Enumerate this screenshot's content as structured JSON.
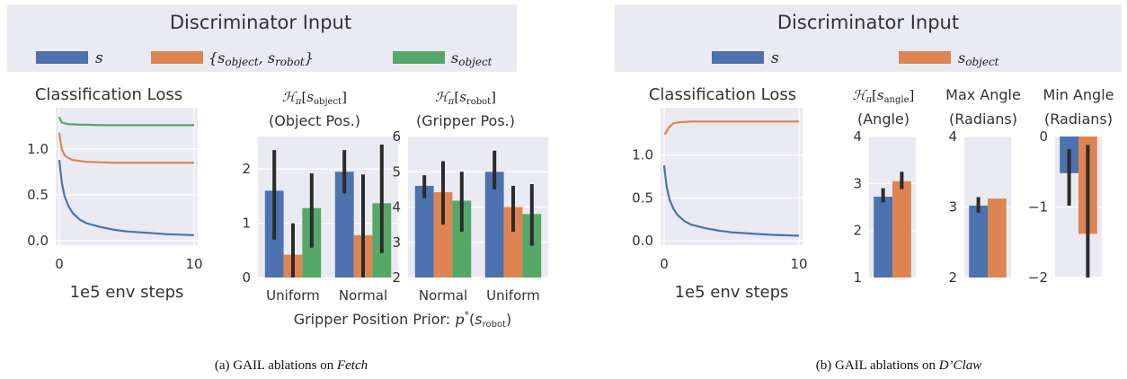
{
  "colors": {
    "panel_bg": "#eaeaf2",
    "s": "#4c72b0",
    "pair": "#dd8452",
    "object": "#55a868",
    "errbar": "#2b2b2b"
  },
  "panel_a": {
    "legend_title": "Discriminator Input",
    "legend": [
      {
        "key": "s",
        "label": "s",
        "color": "#4c72b0"
      },
      {
        "key": "pair",
        "label": "{s_object, s_robot}",
        "color": "#dd8452"
      },
      {
        "key": "object",
        "label": "s_object",
        "color": "#55a868"
      }
    ],
    "caption": "(a) GAIL ablations on Fetch",
    "xlabel_shared": "Gripper Position Prior: p*(s_robot)"
  },
  "panel_b": {
    "legend_title": "Discriminator Input",
    "legend": [
      {
        "key": "s",
        "label": "s",
        "color": "#4c72b0"
      },
      {
        "key": "object",
        "label": "s_object",
        "color": "#dd8452"
      }
    ],
    "caption": "(b) GAIL ablations on D’Claw"
  },
  "chart_data": [
    {
      "id": "a_loss",
      "type": "line",
      "title": "Classification Loss",
      "xlabel": "1e5 env steps",
      "xlim": [
        0,
        10
      ],
      "ylim": [
        -0.05,
        1.45
      ],
      "xticks": [
        0,
        10
      ],
      "yticks": [
        0.0,
        0.5,
        1.0
      ],
      "series": [
        {
          "name": "s",
          "x": [
            0,
            0.1,
            0.2,
            0.4,
            0.7,
            1,
            1.5,
            2,
            3,
            4,
            5,
            6,
            7,
            8,
            9,
            10
          ],
          "y": [
            0.88,
            0.74,
            0.62,
            0.48,
            0.37,
            0.3,
            0.23,
            0.19,
            0.15,
            0.12,
            0.1,
            0.09,
            0.08,
            0.07,
            0.065,
            0.06
          ]
        },
        {
          "name": "{s_object, s_robot}",
          "x": [
            0,
            0.1,
            0.2,
            0.4,
            0.7,
            1,
            1.5,
            2,
            3,
            4,
            5,
            6,
            7,
            8,
            9,
            10
          ],
          "y": [
            1.18,
            1.06,
            0.99,
            0.93,
            0.9,
            0.88,
            0.87,
            0.86,
            0.855,
            0.85,
            0.85,
            0.85,
            0.85,
            0.85,
            0.85,
            0.85
          ]
        },
        {
          "name": "s_object",
          "x": [
            0,
            0.1,
            0.2,
            0.4,
            0.7,
            1,
            1.5,
            2,
            3,
            4,
            5,
            6,
            7,
            8,
            9,
            10
          ],
          "y": [
            1.35,
            1.31,
            1.29,
            1.28,
            1.27,
            1.27,
            1.265,
            1.265,
            1.26,
            1.26,
            1.26,
            1.26,
            1.26,
            1.26,
            1.26,
            1.26
          ]
        }
      ]
    },
    {
      "id": "a_obj",
      "type": "bar",
      "title": [
        "H_π[s_object]",
        "(Object Pos.)"
      ],
      "categories": [
        "Uniform",
        "Normal"
      ],
      "ylim": [
        0,
        2.6
      ],
      "yticks": [
        0,
        1,
        2
      ],
      "series": [
        {
          "name": "s",
          "values": [
            1.6,
            1.95
          ],
          "err_low": [
            0.7,
            1.55
          ],
          "err_high": [
            2.35,
            2.35
          ]
        },
        {
          "name": "{s_object, s_robot}",
          "values": [
            0.42,
            0.78
          ],
          "err_low": [
            0.0,
            0.0
          ],
          "err_high": [
            1.0,
            1.9
          ]
        },
        {
          "name": "s_object",
          "values": [
            1.28,
            1.37
          ],
          "err_low": [
            0.55,
            0.45
          ],
          "err_high": [
            1.92,
            2.45
          ]
        }
      ]
    },
    {
      "id": "a_grip",
      "type": "bar",
      "title": [
        "H_π[s_robot]",
        "(Gripper Pos.)"
      ],
      "categories": [
        "Normal",
        "Uniform"
      ],
      "ylim": [
        2,
        6
      ],
      "yticks": [
        2,
        3,
        4,
        5,
        6
      ],
      "series": [
        {
          "name": "s",
          "values": [
            4.6,
            5.0
          ],
          "err_low": [
            4.25,
            4.5
          ],
          "err_high": [
            4.9,
            5.6
          ]
        },
        {
          "name": "{s_object, s_robot}",
          "values": [
            4.42,
            4.0
          ],
          "err_low": [
            3.5,
            3.3
          ],
          "err_high": [
            5.3,
            4.6
          ]
        },
        {
          "name": "s_object",
          "values": [
            4.18,
            3.8
          ],
          "err_low": [
            3.3,
            2.9
          ],
          "err_high": [
            5.0,
            4.65
          ]
        }
      ]
    },
    {
      "id": "b_loss",
      "type": "line",
      "title": "Classification Loss",
      "xlabel": "1e5 env steps",
      "xlim": [
        0,
        10
      ],
      "ylim": [
        -0.05,
        1.55
      ],
      "xticks": [
        0,
        10
      ],
      "yticks": [
        0.0,
        0.5,
        1.0
      ],
      "series": [
        {
          "name": "s",
          "x": [
            0,
            0.1,
            0.2,
            0.4,
            0.7,
            1,
            1.5,
            2,
            3,
            4,
            5,
            6,
            7,
            8,
            9,
            10
          ],
          "y": [
            0.88,
            0.74,
            0.62,
            0.48,
            0.37,
            0.3,
            0.23,
            0.19,
            0.15,
            0.12,
            0.1,
            0.09,
            0.08,
            0.07,
            0.065,
            0.06
          ]
        },
        {
          "name": "s_object",
          "x": [
            0,
            0.1,
            0.2,
            0.4,
            0.7,
            1,
            1.5,
            2,
            3,
            4,
            5,
            6,
            7,
            8,
            9,
            10
          ],
          "y": [
            1.25,
            1.25,
            1.28,
            1.33,
            1.37,
            1.38,
            1.385,
            1.39,
            1.39,
            1.39,
            1.39,
            1.39,
            1.39,
            1.39,
            1.39,
            1.39
          ]
        }
      ]
    },
    {
      "id": "b_angle",
      "type": "bar",
      "title": [
        "H_π[s_angle]",
        "(Angle)"
      ],
      "categories": [
        ""
      ],
      "ylim": [
        1,
        4
      ],
      "yticks": [
        1,
        2,
        3,
        4
      ],
      "series": [
        {
          "name": "s",
          "values": [
            2.72
          ],
          "err_low": [
            2.6
          ],
          "err_high": [
            2.9
          ]
        },
        {
          "name": "s_object",
          "values": [
            3.05
          ],
          "err_low": [
            2.88
          ],
          "err_high": [
            3.25
          ]
        }
      ]
    },
    {
      "id": "b_max",
      "type": "bar",
      "title": [
        "Max Angle",
        "(Radians)"
      ],
      "categories": [
        ""
      ],
      "ylim": [
        2,
        4
      ],
      "yticks": [
        2,
        3,
        4
      ],
      "series": [
        {
          "name": "s",
          "values": [
            3.02
          ],
          "err_low": [
            2.92
          ],
          "err_high": [
            3.14
          ]
        },
        {
          "name": "s_object",
          "values": [
            3.12
          ],
          "err_low": [
            3.12
          ],
          "err_high": [
            3.12
          ]
        }
      ]
    },
    {
      "id": "b_min",
      "type": "bar",
      "title": [
        "Min Angle",
        "(Radians)"
      ],
      "categories": [
        ""
      ],
      "ylim": [
        -2,
        0
      ],
      "yticks": [
        -2,
        -1,
        0
      ],
      "series": [
        {
          "name": "s",
          "values": [
            -0.52
          ],
          "err_low": [
            -0.98
          ],
          "err_high": [
            -0.18
          ]
        },
        {
          "name": "s_object",
          "values": [
            -1.38
          ],
          "err_low": [
            -2.0
          ],
          "err_high": [
            -0.12
          ]
        }
      ]
    }
  ]
}
